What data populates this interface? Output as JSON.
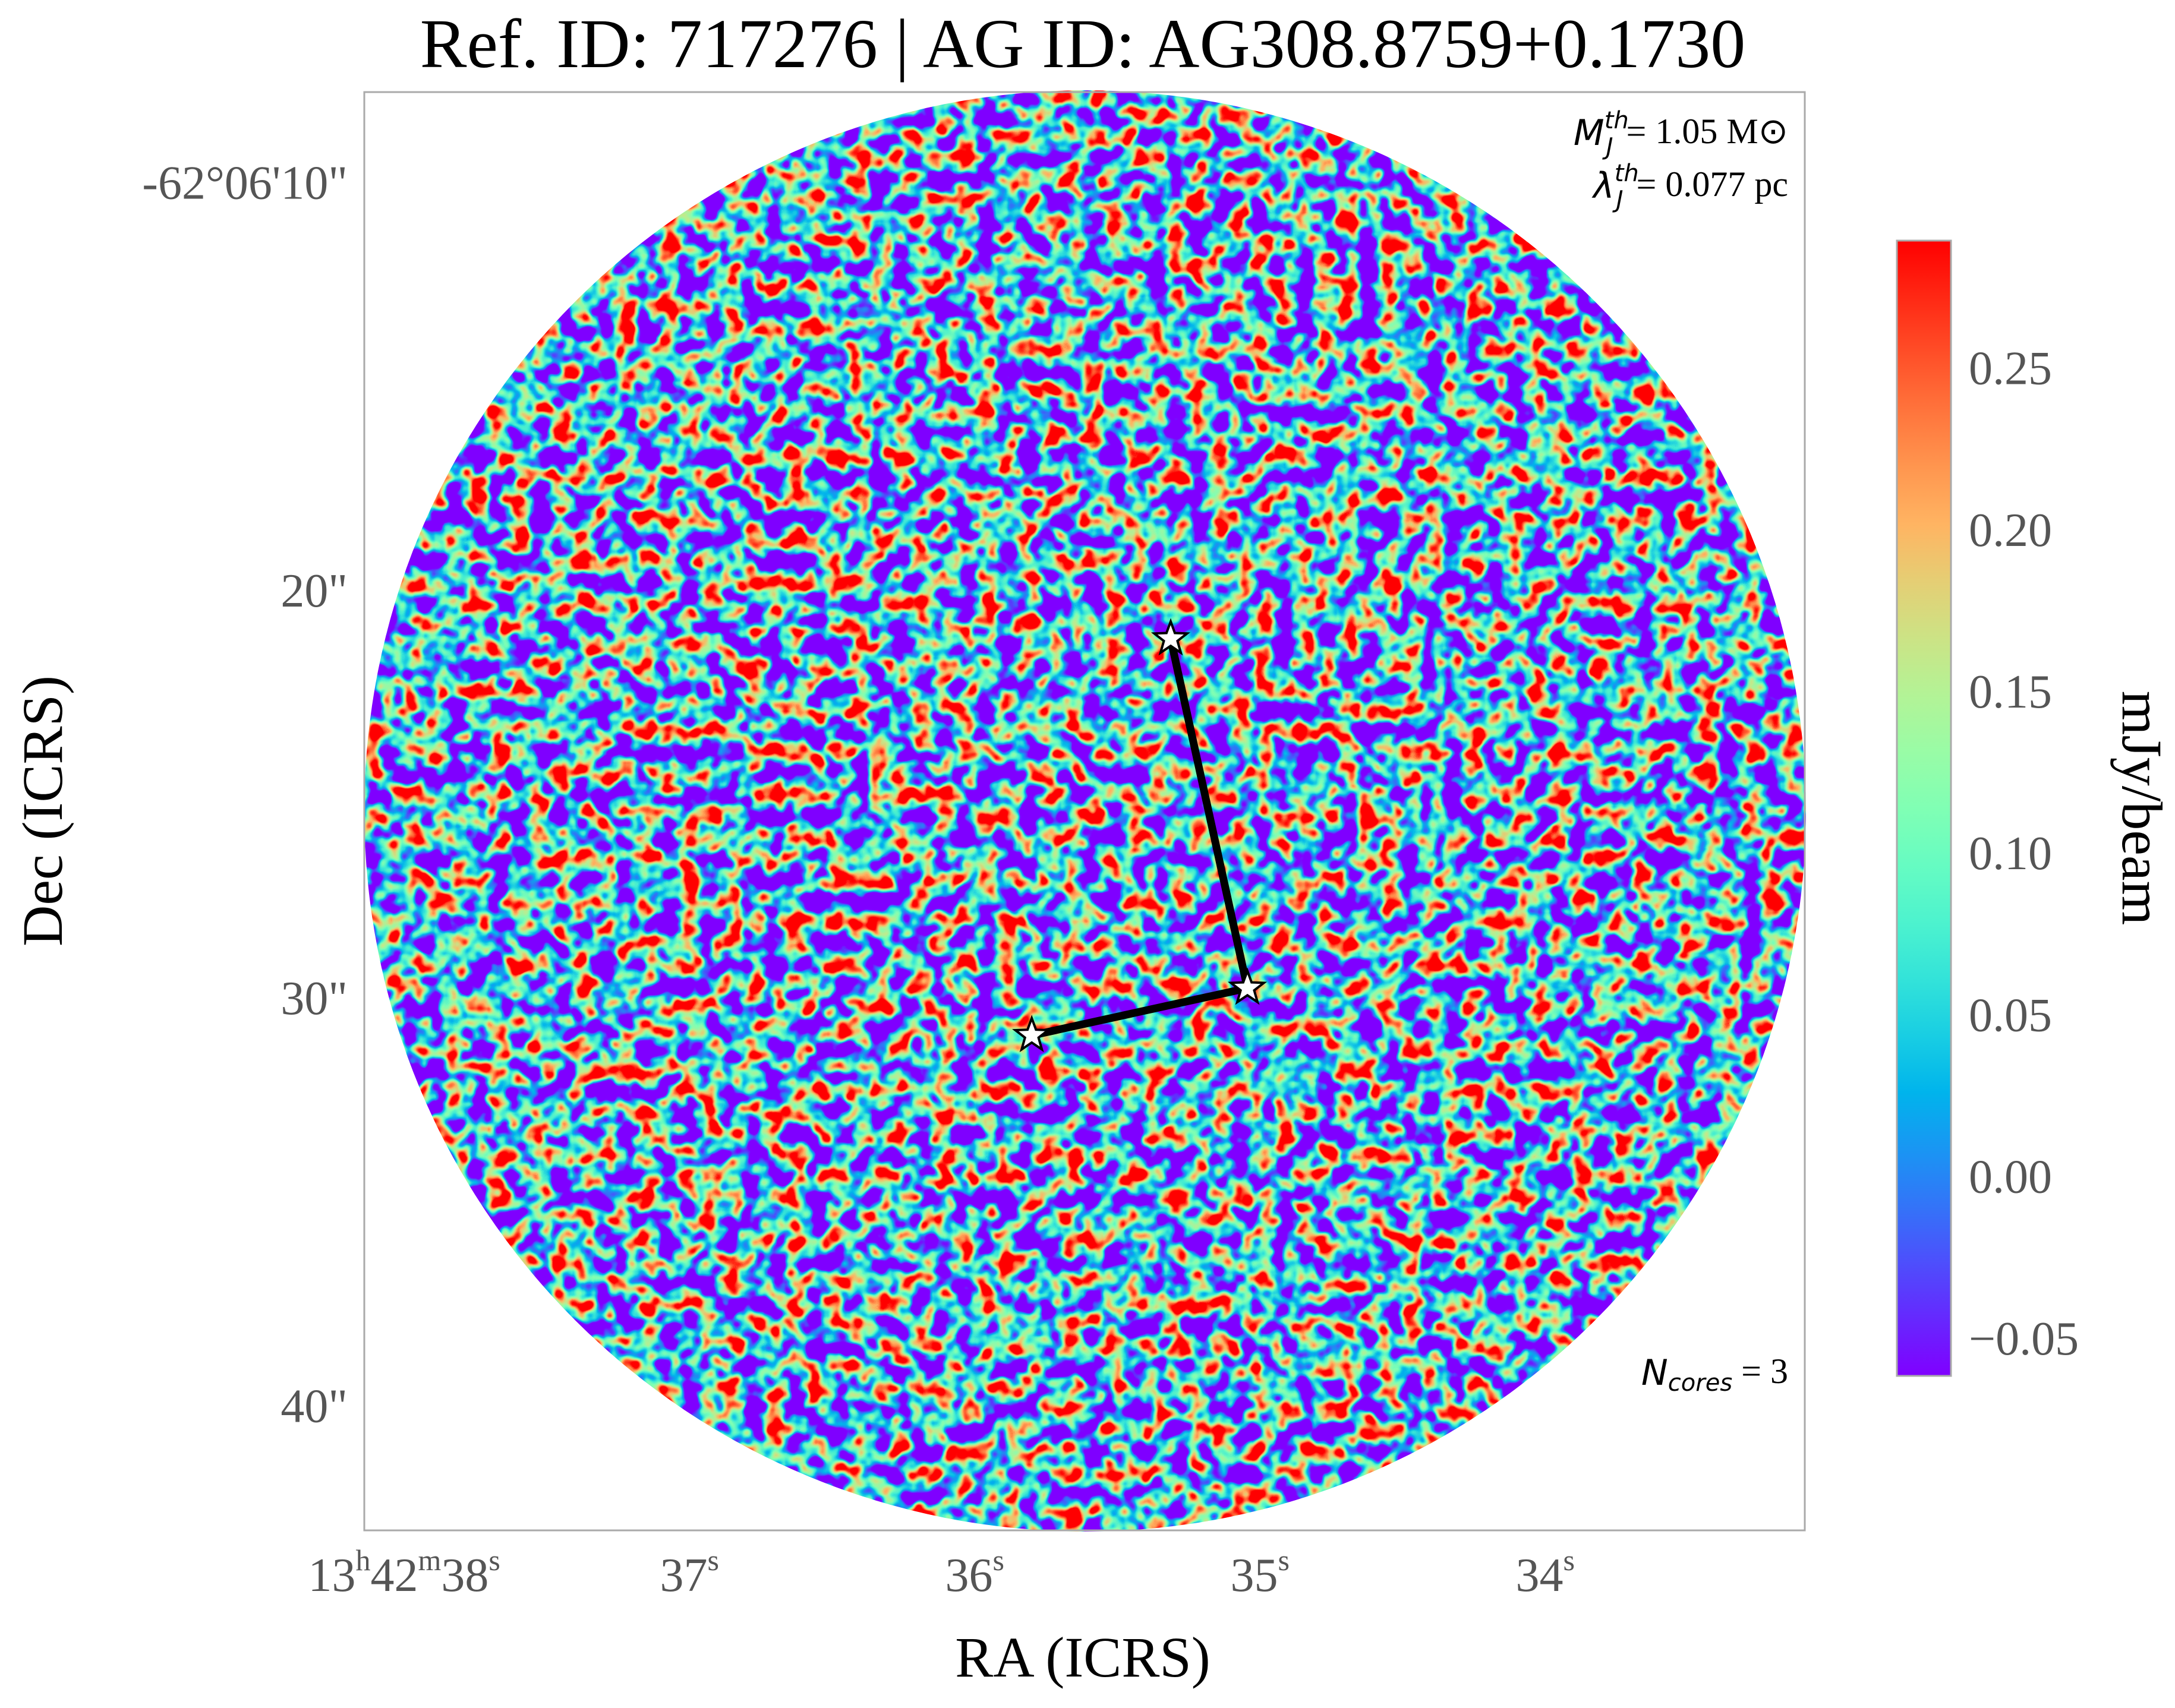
{
  "chart_data": {
    "type": "sky_image",
    "title": "Ref. ID: 717276 | AG ID: AG308.8759+0.1730",
    "xlabel": "RA (ICRS)",
    "ylabel": "Dec (ICRS)",
    "xlim": [
      38.14,
      33.09
    ],
    "ylim": [
      7.65,
      42.93
    ],
    "xticks": [
      {
        "value": 38,
        "label": "13h42m38s"
      },
      {
        "value": 37,
        "label": "37s"
      },
      {
        "value": 36,
        "label": "36s"
      },
      {
        "value": 35,
        "label": "35s"
      },
      {
        "value": 34,
        "label": "34s"
      }
    ],
    "yticks": [
      {
        "value": 10,
        "label": "-62°06'10\""
      },
      {
        "value": 20,
        "label": "20\""
      },
      {
        "value": 30,
        "label": "30\""
      },
      {
        "value": 40,
        "label": "40\""
      }
    ],
    "colorbar": {
      "label": "mJy/beam",
      "colormap": "rainbow",
      "clim": [
        -0.06,
        0.291
      ],
      "ticks": [
        {
          "value": -0.05,
          "label": "−0.05"
        },
        {
          "value": 0,
          "label": "0.00"
        },
        0.05,
        {
          "value": 0.1,
          "label": "0.10"
        },
        0.15,
        {
          "value": 0.2,
          "label": "0.20"
        },
        0.25
      ]
    },
    "annotations": [
      {
        "symbol": "M",
        "sup": "th",
        "sub": "J",
        "text": "= 1.05 M⊙"
      },
      {
        "symbol": "λ",
        "sup": "th",
        "sub": "J",
        "text": "= 0.077 pc"
      },
      {
        "symbol": "N",
        "sub": "cores",
        "text": " = 3"
      }
    ],
    "cores": {
      "ra": [
        35.313,
        35.044,
        35.8
      ],
      "dec": [
        21.06,
        29.63,
        30.79
      ]
    },
    "mst_edges": [
      [
        0,
        1
      ],
      [
        1,
        2
      ]
    ]
  }
}
